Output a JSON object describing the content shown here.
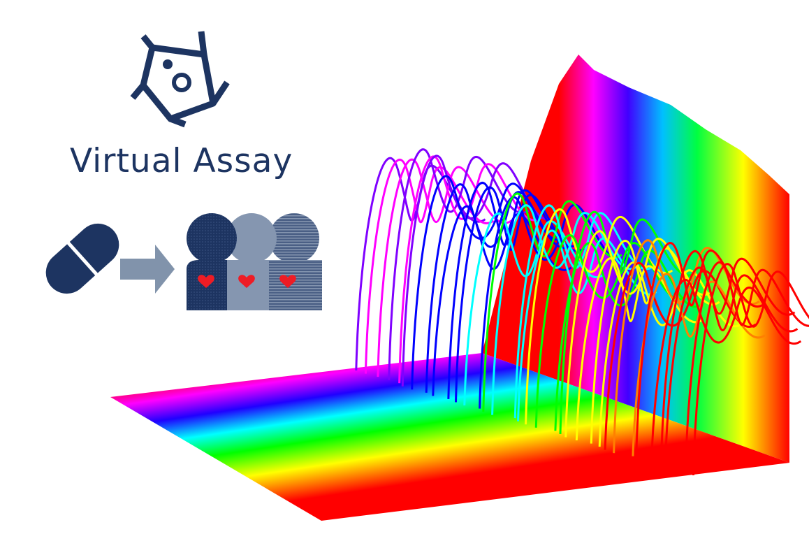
{
  "brand": {
    "title": "Virtual Assay",
    "navy": "#1d3461",
    "gray_blue": "#8596b0",
    "heart_red": "#ee1c25",
    "arrow_gray": "#8193ab"
  },
  "icons": [
    "cell-logo-icon",
    "pill-icon",
    "arrow-right-icon",
    "population-icon",
    "heart-icon"
  ],
  "graphic": {
    "kind": "3d-waterfall-trace-plot",
    "palette": [
      "#ff0000",
      "#ff00ff",
      "#8000ff",
      "#0000ff",
      "#00ffff",
      "#00ff00",
      "#ffff00",
      "#ff8000",
      "#ff0000"
    ]
  }
}
